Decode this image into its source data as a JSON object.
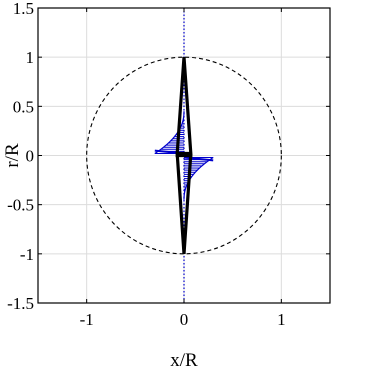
{
  "chart_data": {
    "type": "line",
    "title": "",
    "xlabel": "x/R",
    "ylabel": "r/R",
    "xlim": [
      -1.5,
      1.5
    ],
    "ylim": [
      -1.5,
      1.5
    ],
    "xticks": [
      -1,
      0,
      1
    ],
    "xtick_labels": [
      "-1",
      "0",
      "1"
    ],
    "yticks": [
      -1.5,
      -1,
      -0.5,
      0,
      0.5,
      1,
      1.5
    ],
    "ytick_labels": [
      "-1.5",
      "-1",
      "-0.5",
      "0",
      "0.5",
      "1",
      "1.5"
    ],
    "grid": true,
    "aspect": "equal",
    "series": [
      {
        "key": "unit-circle",
        "style": "dashed",
        "color": "#000000",
        "shape": "circle",
        "center": [
          0,
          0
        ],
        "radius": 1
      },
      {
        "key": "axis-line",
        "style": "dotted",
        "color": "#0000cc",
        "x": [
          0,
          0
        ],
        "y": [
          -1.5,
          1.5
        ]
      },
      {
        "key": "wing-outline",
        "style": "solid-thick",
        "color": "#000000",
        "x": [
          0,
          0.07,
          -0.07,
          0.0,
          0.07,
          0.07,
          -0.07,
          -0.07,
          0
        ],
        "y": [
          1.0,
          0.02,
          0.02,
          -1.0,
          0.02,
          0.0,
          0.0,
          0.02,
          1.0
        ]
      }
    ],
    "velocity_field": {
      "color": "#0000cc",
      "upper": {
        "y_start": 0.02,
        "y_end": 0.45,
        "x_max": 0.3
      },
      "lower": {
        "y_start": -0.02,
        "y_end": -0.45,
        "x_min": -0.3
      },
      "tips": [
        {
          "x": -0.3,
          "y": 0.05
        },
        {
          "x": 0.3,
          "y": -0.05
        }
      ]
    }
  }
}
